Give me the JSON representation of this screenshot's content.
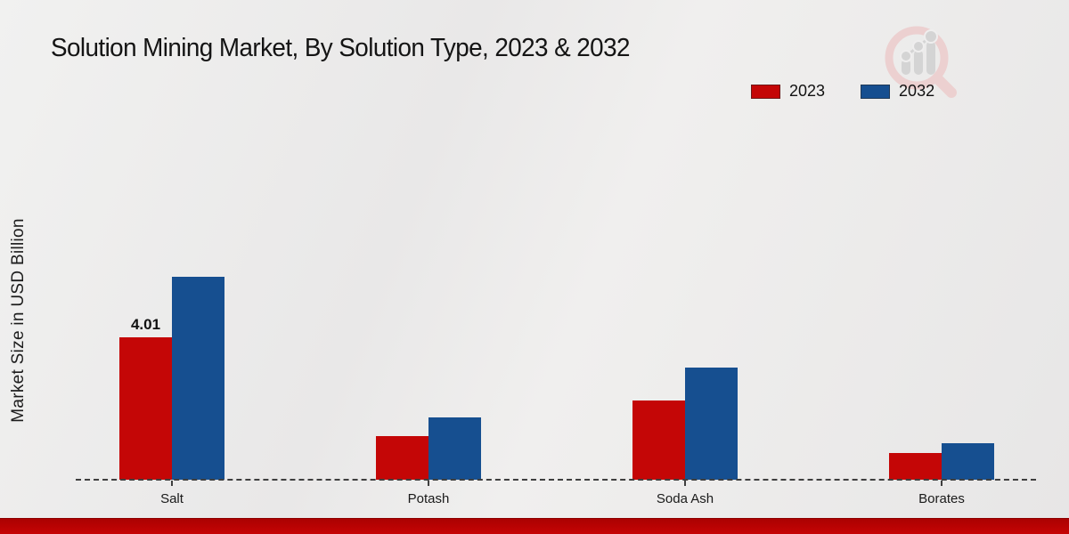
{
  "title": "Solution Mining Market, By Solution Type, 2023 & 2032",
  "ylabel": "Market Size in USD Billion",
  "colors": {
    "series_2023": "#c40606",
    "series_2032": "#164f90",
    "footer_accent": "#c00000",
    "axis": "#3f3f3f",
    "background": "#ececec"
  },
  "legend": {
    "position": "top-right",
    "items": [
      {
        "label": "2023",
        "color": "#c40606"
      },
      {
        "label": "2032",
        "color": "#164f90"
      }
    ]
  },
  "watermark": {
    "icon": "magnifier-growth-chart-logo"
  },
  "chart_data": {
    "type": "bar",
    "title": "Solution Mining Market, By Solution Type, 2023 & 2032",
    "xlabel": "",
    "ylabel": "Market Size in USD Billion",
    "categories": [
      "Salt",
      "Potash",
      "Soda Ash",
      "Borates"
    ],
    "series": [
      {
        "name": "2023",
        "color": "#c40606",
        "values": [
          4.01,
          1.22,
          2.23,
          0.75
        ],
        "data_labels": [
          "4.01",
          "",
          "",
          ""
        ]
      },
      {
        "name": "2032",
        "color": "#164f90",
        "values": [
          5.71,
          1.75,
          3.16,
          1.03
        ],
        "data_labels": [
          "",
          "",
          "",
          ""
        ]
      }
    ],
    "ylim": [
      0,
      6.5
    ],
    "grid": false,
    "baseline_style": "dashed",
    "legend_position": "top-right"
  }
}
